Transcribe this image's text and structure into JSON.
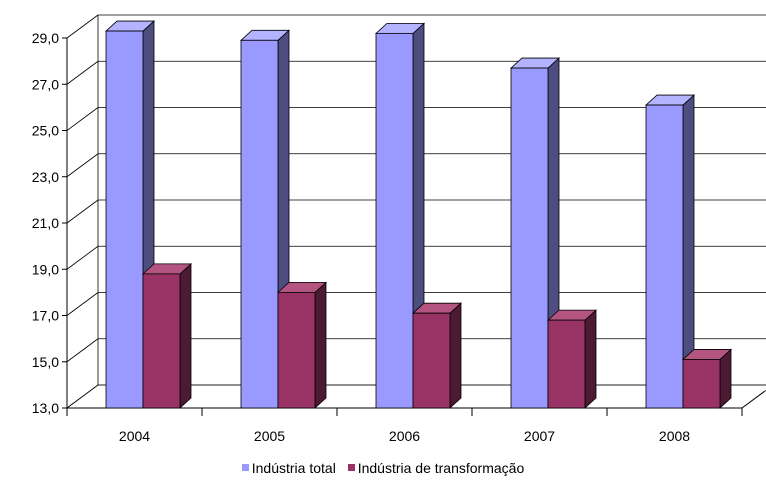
{
  "chart_data": {
    "type": "bar",
    "title": "",
    "xlabel": "",
    "ylabel": "",
    "categories": [
      "2004",
      "2005",
      "2006",
      "2007",
      "2008"
    ],
    "series": [
      {
        "name": "Indústria total",
        "values": [
          29.3,
          28.9,
          29.2,
          27.7,
          26.1
        ],
        "color": "#9999ff",
        "side_color": "#4d4d80",
        "top_color": "#b3b3ff"
      },
      {
        "name": "Indústria de transformação",
        "values": [
          18.8,
          18.0,
          17.1,
          16.8,
          15.1
        ],
        "color": "#993366",
        "side_color": "#4d1a33",
        "top_color": "#b35580"
      }
    ],
    "ylim": [
      13.0,
      29.0
    ],
    "yticks": [
      "13,0",
      "15,0",
      "17,0",
      "19,0",
      "21,0",
      "23,0",
      "25,0",
      "27,0",
      "29,0"
    ],
    "grid": true,
    "legend_position": "bottom"
  }
}
